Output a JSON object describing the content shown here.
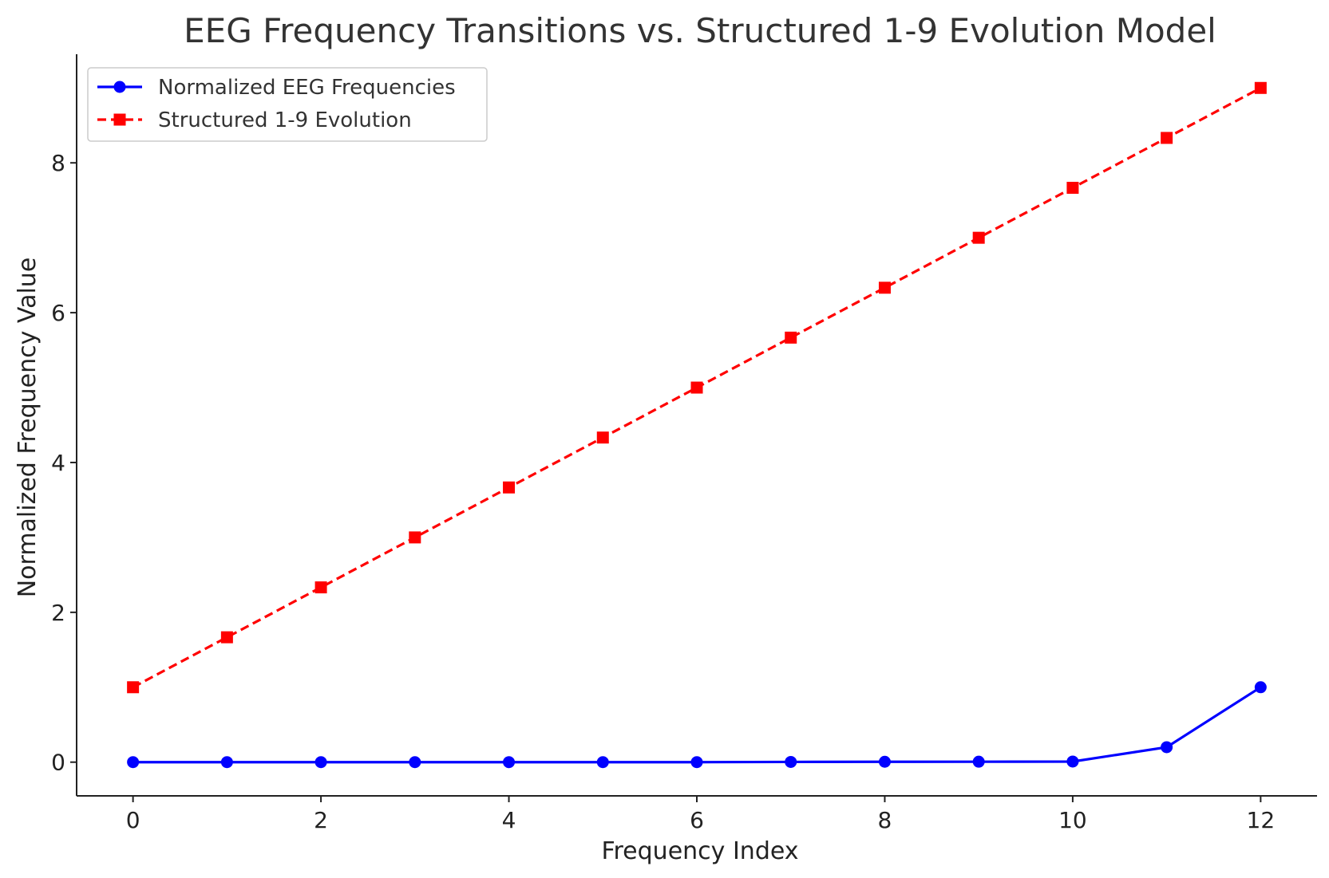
{
  "chart_data": {
    "type": "line",
    "title": "EEG Frequency Transitions vs. Structured 1-9 Evolution Model",
    "xlabel": "Frequency Index",
    "ylabel": "Normalized Frequency Value",
    "x": [
      0,
      1,
      2,
      3,
      4,
      5,
      6,
      7,
      8,
      9,
      10,
      11,
      12
    ],
    "xlim": [
      -0.6,
      12.6
    ],
    "ylim": [
      -0.45,
      9.45
    ],
    "xticks": [
      0,
      2,
      4,
      6,
      8,
      10,
      12
    ],
    "yticks": [
      0,
      2,
      4,
      6,
      8
    ],
    "grid": false,
    "legend_position": "top-left",
    "series": [
      {
        "name": "Normalized EEG Frequencies",
        "values": [
          0,
          0,
          0,
          0,
          0,
          0,
          0,
          0.003,
          0.005,
          0.006,
          0.008,
          0.2,
          1.0
        ],
        "color": "#0000ff",
        "marker": "circle",
        "line_style": "solid"
      },
      {
        "name": "Structured 1-9 Evolution",
        "values": [
          1.0,
          1.667,
          2.333,
          3.0,
          3.667,
          4.333,
          5.0,
          5.667,
          6.333,
          7.0,
          7.667,
          8.333,
          9.0
        ],
        "color": "#ff0000",
        "marker": "square",
        "line_style": "dashed"
      }
    ]
  }
}
